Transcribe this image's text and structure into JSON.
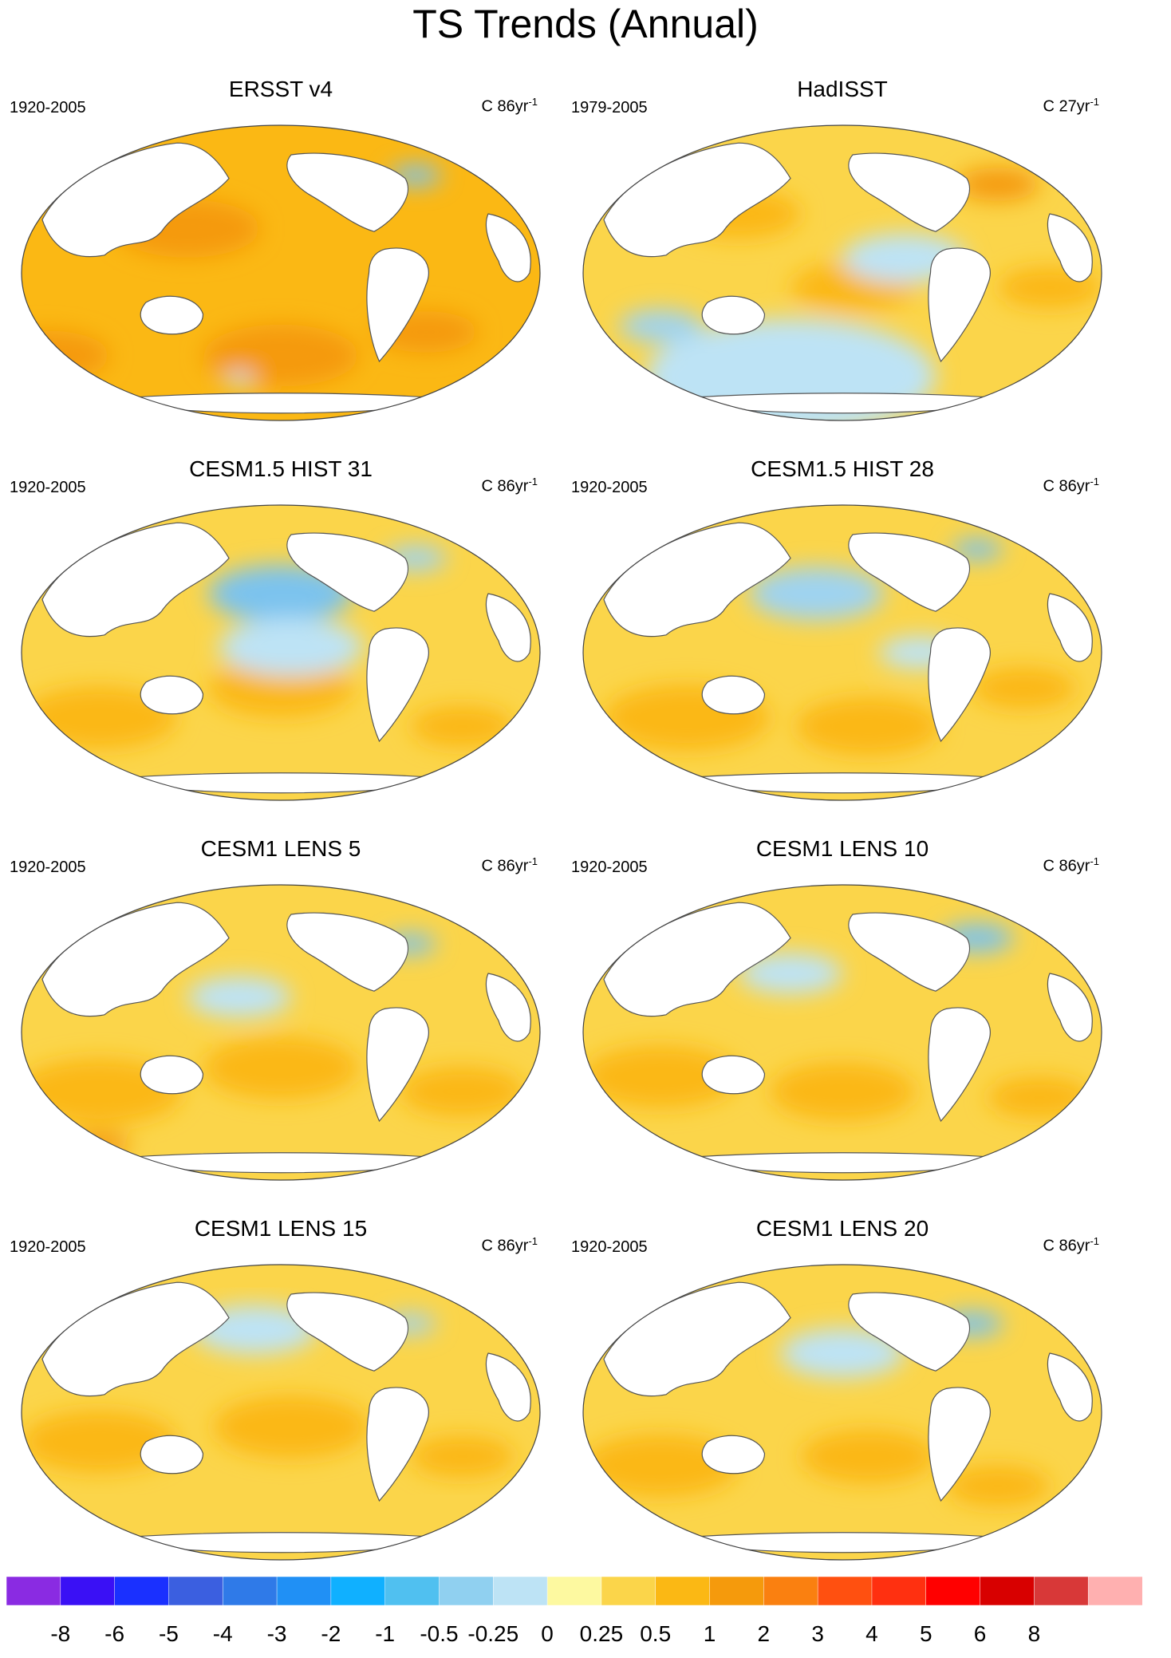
{
  "title": "TS Trends (Annual)",
  "panels": [
    {
      "title": "ERSST v4",
      "period": "1920-2005",
      "units": "C 86yr",
      "units_sup": "-1",
      "base": "#fbb814",
      "warm": [
        [
          0.05,
          0.78,
          0.12,
          "#f59a0c"
        ],
        [
          0.5,
          0.78,
          0.15,
          "#f59a0c"
        ],
        [
          0.78,
          0.7,
          0.1,
          "#f59a0c"
        ],
        [
          0.32,
          0.35,
          0.14,
          "#f59a0c"
        ]
      ],
      "cool": [
        [
          0.76,
          0.17,
          0.05,
          "#7cc3ee"
        ],
        [
          0.42,
          0.86,
          0.03,
          "#bde3f5"
        ]
      ]
    },
    {
      "title": "HadISST",
      "period": "1979-2005",
      "units": "C 27yr",
      "units_sup": "-1",
      "base": "#fbd54a",
      "warm": [
        [
          0.3,
          0.3,
          0.12,
          "#fbb814"
        ],
        [
          0.52,
          0.55,
          0.12,
          "#fbb814"
        ],
        [
          0.8,
          0.2,
          0.08,
          "#f59a0c"
        ],
        [
          0.9,
          0.55,
          0.1,
          "#fbb814"
        ]
      ],
      "cool": [
        [
          0.4,
          0.85,
          0.28,
          "#bde3f5"
        ],
        [
          0.62,
          0.45,
          0.12,
          "#bde3f5"
        ],
        [
          0.15,
          0.68,
          0.08,
          "#9fd3f0"
        ]
      ]
    },
    {
      "title": "CESM1.5 HIST 31",
      "period": "1920-2005",
      "units": "C 86yr",
      "units_sup": "-1",
      "base": "#fbd54a",
      "warm": [
        [
          0.15,
          0.72,
          0.15,
          "#fbb814"
        ],
        [
          0.5,
          0.62,
          0.14,
          "#fbb814"
        ],
        [
          0.85,
          0.75,
          0.1,
          "#fbb814"
        ]
      ],
      "cool": [
        [
          0.5,
          0.3,
          0.14,
          "#7cc3ee"
        ],
        [
          0.52,
          0.48,
          0.14,
          "#bde3f5"
        ],
        [
          0.76,
          0.18,
          0.06,
          "#9fd3f0"
        ]
      ]
    },
    {
      "title": "CESM1.5 HIST 28",
      "period": "1920-2005",
      "units": "C 86yr",
      "units_sup": "-1",
      "base": "#fbd54a",
      "warm": [
        [
          0.2,
          0.72,
          0.16,
          "#fbb814"
        ],
        [
          0.55,
          0.75,
          0.14,
          "#fbb814"
        ],
        [
          0.85,
          0.62,
          0.1,
          "#fbb814"
        ]
      ],
      "cool": [
        [
          0.45,
          0.3,
          0.13,
          "#9fd3f0"
        ],
        [
          0.65,
          0.5,
          0.08,
          "#bde3f5"
        ],
        [
          0.76,
          0.15,
          0.05,
          "#7cc3ee"
        ]
      ]
    },
    {
      "title": "CESM1 LENS 5",
      "period": "1920-2005",
      "units": "C 86yr",
      "units_sup": "-1",
      "base": "#fbd54a",
      "warm": [
        [
          0.15,
          0.7,
          0.16,
          "#fbb814"
        ],
        [
          0.5,
          0.62,
          0.15,
          "#fbb814"
        ],
        [
          0.85,
          0.7,
          0.12,
          "#fbb814"
        ],
        [
          0.15,
          0.88,
          0.06,
          "#f59a0c"
        ]
      ],
      "cool": [
        [
          0.42,
          0.38,
          0.1,
          "#bde3f5"
        ],
        [
          0.75,
          0.2,
          0.05,
          "#7cc3ee"
        ]
      ]
    },
    {
      "title": "CESM1 LENS 10",
      "period": "1920-2005",
      "units": "C 86yr",
      "units_sup": "-1",
      "base": "#fbd54a",
      "warm": [
        [
          0.15,
          0.65,
          0.15,
          "#fbb814"
        ],
        [
          0.5,
          0.7,
          0.14,
          "#fbb814"
        ],
        [
          0.88,
          0.72,
          0.1,
          "#fbb814"
        ]
      ],
      "cool": [
        [
          0.4,
          0.3,
          0.1,
          "#bde3f5"
        ],
        [
          0.76,
          0.18,
          0.07,
          "#7cc3ee"
        ]
      ]
    },
    {
      "title": "CESM1 LENS 15",
      "period": "1920-2005",
      "units": "C 86yr",
      "units_sup": "-1",
      "base": "#fbd54a",
      "warm": [
        [
          0.15,
          0.6,
          0.15,
          "#fbb814"
        ],
        [
          0.52,
          0.55,
          0.15,
          "#fbb814"
        ],
        [
          0.85,
          0.65,
          0.1,
          "#fbb814"
        ]
      ],
      "cool": [
        [
          0.45,
          0.22,
          0.12,
          "#bde3f5"
        ],
        [
          0.75,
          0.2,
          0.05,
          "#9fd3f0"
        ]
      ]
    },
    {
      "title": "CESM1 LENS 20",
      "period": "1920-2005",
      "units": "C 86yr",
      "units_sup": "-1",
      "base": "#fbd54a",
      "warm": [
        [
          0.15,
          0.68,
          0.15,
          "#fbb814"
        ],
        [
          0.55,
          0.65,
          0.13,
          "#fbb814"
        ],
        [
          0.8,
          0.75,
          0.1,
          "#fbb814"
        ]
      ],
      "cool": [
        [
          0.5,
          0.3,
          0.12,
          "#bde3f5"
        ],
        [
          0.75,
          0.2,
          0.06,
          "#7cc3ee"
        ]
      ]
    }
  ],
  "colorbar": {
    "colors": [
      "#8a2be2",
      "#3a10f5",
      "#1a30ff",
      "#3b5fe0",
      "#2f7ae8",
      "#2090f5",
      "#10b0ff",
      "#50c0f0",
      "#90d0f0",
      "#bde3f5",
      "#fdf9a0",
      "#fbd54a",
      "#fbb814",
      "#f59a0c",
      "#fa8010",
      "#ff5010",
      "#ff3010",
      "#ff0000",
      "#d80000",
      "#d83838",
      "#ffb0b0"
    ],
    "labels": [
      "-8",
      "-6",
      "-5",
      "-4",
      "-3",
      "-2",
      "-1",
      "-0.5",
      "-0.25",
      "0",
      "0.25",
      "0.5",
      "1",
      "2",
      "3",
      "4",
      "5",
      "6",
      "8"
    ]
  }
}
